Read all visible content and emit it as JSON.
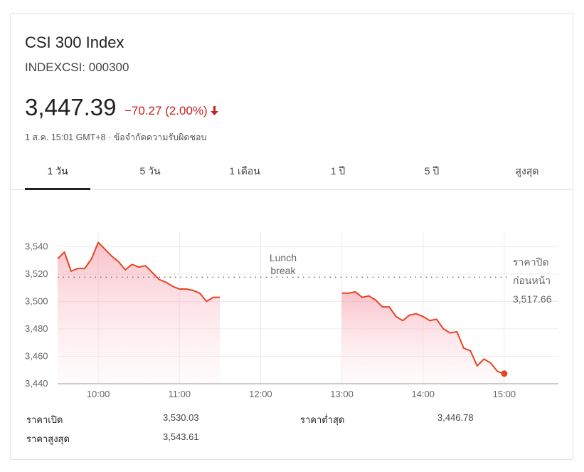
{
  "quote": {
    "title": "CSI 300 Index",
    "symbol": "INDEXCSI: 000300",
    "price": "3,447.39",
    "change": "−70.27 (2.00%)",
    "meta": "1 ส.ค. 15:01 GMT+8 · ข้อจำกัดความรับผิดชอบ",
    "change_color": "#c5221f",
    "line_color": "#e8431f",
    "fill_color": "#f9c5cd"
  },
  "tabs": [
    {
      "label": "1 วัน",
      "active": true
    },
    {
      "label": "5 วัน",
      "active": false
    },
    {
      "label": "1 เดือน",
      "active": false
    },
    {
      "label": "1 ปี",
      "active": false
    },
    {
      "label": "5 ปี",
      "active": false
    },
    {
      "label": "สูงสุด",
      "active": false
    }
  ],
  "chart_data": {
    "type": "area",
    "title": "",
    "xlabel": "",
    "ylabel": "",
    "ylim": [
      3440,
      3550
    ],
    "xlim": [
      "9:30",
      "15:40"
    ],
    "yticks": [
      "3,540",
      "3,520",
      "3,500",
      "3,480",
      "3,460",
      "3,440"
    ],
    "ytick_values": [
      3540,
      3520,
      3500,
      3480,
      3460,
      3440
    ],
    "xticks": [
      "10:00",
      "11:00",
      "12:00",
      "13:00",
      "14:00",
      "15:00"
    ],
    "xtick_values": [
      "10:00",
      "11:00",
      "12:00",
      "13:00",
      "14:00",
      "15:00"
    ],
    "grid": true,
    "annotations": [
      {
        "text_lines": [
          "Lunch",
          "break"
        ]
      },
      {
        "text_lines": [
          "ราคาปิด",
          "ก่อนหน้า",
          "3,517.66"
        ]
      }
    ],
    "previous_close": 3517.66,
    "series": [
      {
        "segment": "morning",
        "points": [
          [
            "9:30",
            3531
          ],
          [
            "9:35",
            3536
          ],
          [
            "9:40",
            3522
          ],
          [
            "9:45",
            3524
          ],
          [
            "9:50",
            3524
          ],
          [
            "9:55",
            3531
          ],
          [
            "10:00",
            3543
          ],
          [
            "10:05",
            3538
          ],
          [
            "10:10",
            3533
          ],
          [
            "10:15",
            3529
          ],
          [
            "10:20",
            3523
          ],
          [
            "10:25",
            3527
          ],
          [
            "10:30",
            3525
          ],
          [
            "10:35",
            3526
          ],
          [
            "10:40",
            3521
          ],
          [
            "10:45",
            3516
          ],
          [
            "10:50",
            3514
          ],
          [
            "10:55",
            3511
          ],
          [
            "11:00",
            3509
          ],
          [
            "11:05",
            3509
          ],
          [
            "11:10",
            3508
          ],
          [
            "11:15",
            3506
          ],
          [
            "11:20",
            3500
          ],
          [
            "11:25",
            3503
          ],
          [
            "11:30",
            3503
          ]
        ]
      },
      {
        "segment": "afternoon",
        "points": [
          [
            "13:00",
            3506
          ],
          [
            "13:05",
            3506
          ],
          [
            "13:10",
            3507
          ],
          [
            "13:15",
            3503
          ],
          [
            "13:20",
            3504
          ],
          [
            "13:25",
            3501
          ],
          [
            "13:30",
            3496
          ],
          [
            "13:35",
            3496
          ],
          [
            "13:40",
            3489
          ],
          [
            "13:45",
            3486
          ],
          [
            "13:50",
            3490
          ],
          [
            "13:55",
            3491
          ],
          [
            "14:00",
            3489
          ],
          [
            "14:05",
            3486
          ],
          [
            "14:10",
            3487
          ],
          [
            "14:15",
            3480
          ],
          [
            "14:20",
            3477
          ],
          [
            "14:25",
            3478
          ],
          [
            "14:30",
            3466
          ],
          [
            "14:35",
            3464
          ],
          [
            "14:40",
            3453
          ],
          [
            "14:45",
            3458
          ],
          [
            "14:50",
            3455
          ],
          [
            "14:55",
            3449
          ],
          [
            "15:00",
            3447.39
          ]
        ]
      }
    ]
  },
  "stats": {
    "open_label": "ราคาเปิด",
    "open_value": "3,530.03",
    "high_label": "ราคาสูงสุด",
    "high_value": "3,543.61",
    "low_label": "ราคาต่ำสุด",
    "low_value": "3,446.78"
  }
}
